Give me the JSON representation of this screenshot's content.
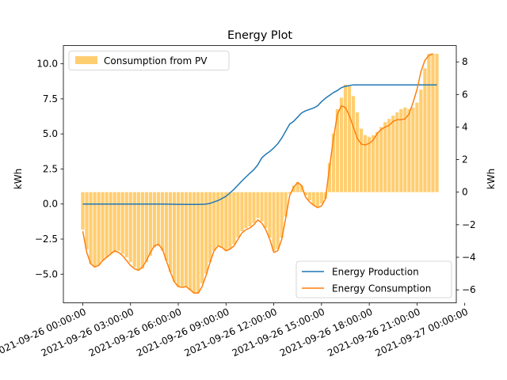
{
  "chart_data": {
    "type": "bar+line",
    "title": "Energy Plot",
    "ylabel_left": "kWh",
    "ylabel_right": "kWh",
    "x_ticks": [
      "2021-09-26 00:00:00",
      "2021-09-26 03:00:00",
      "2021-09-26 06:00:00",
      "2021-09-26 09:00:00",
      "2021-09-26 12:00:00",
      "2021-09-26 15:00:00",
      "2021-09-26 18:00:00",
      "2021-09-26 21:00:00",
      "2021-09-27 00:00:00"
    ],
    "x_tick_hours": [
      0,
      3,
      6,
      9,
      12,
      15,
      18,
      21,
      24
    ],
    "left_axis": {
      "ylim": [
        -7.05,
        11.3
      ],
      "ticks": [
        -5.0,
        -2.5,
        0.0,
        2.5,
        5.0,
        7.5,
        10.0
      ],
      "tick_labels": [
        "−5.0",
        "−2.5",
        "0.0",
        "2.5",
        "5.0",
        "7.5",
        "10.0"
      ]
    },
    "right_axis": {
      "ylim": [
        -6.8,
        9.0
      ],
      "ticks": [
        -6,
        -4,
        -2,
        0,
        2,
        4,
        6,
        8
      ],
      "tick_labels": [
        "−6",
        "−4",
        "−2",
        "0",
        "2",
        "4",
        "6",
        "8"
      ]
    },
    "bars": {
      "name": "Consumption from PV",
      "color": "#ffc658",
      "axis": "right",
      "bar_hours": 0.25,
      "values": [
        [
          0,
          -2.3
        ],
        [
          0.25,
          -3.5
        ],
        [
          0.5,
          -4.4
        ],
        [
          0.75,
          -4.6
        ],
        [
          1,
          -4.5
        ],
        [
          1.25,
          -4.2
        ],
        [
          1.5,
          -4.0
        ],
        [
          1.75,
          -3.8
        ],
        [
          2,
          -3.7
        ],
        [
          2.25,
          -3.6
        ],
        [
          2.5,
          -3.8
        ],
        [
          2.75,
          -4.0
        ],
        [
          3,
          -4.3
        ],
        [
          3.25,
          -4.6
        ],
        [
          3.5,
          -4.8
        ],
        [
          3.75,
          -4.7
        ],
        [
          4,
          -4.3
        ],
        [
          4.25,
          -3.9
        ],
        [
          4.5,
          -3.4
        ],
        [
          4.75,
          -3.3
        ],
        [
          5,
          -3.6
        ],
        [
          5.25,
          -4.2
        ],
        [
          5.5,
          -4.9
        ],
        [
          5.75,
          -5.5
        ],
        [
          6,
          -5.8
        ],
        [
          6.25,
          -5.8
        ],
        [
          6.5,
          -5.8
        ],
        [
          6.75,
          -6.0
        ],
        [
          7,
          -6.2
        ],
        [
          7.25,
          -6.2
        ],
        [
          7.5,
          -5.6
        ],
        [
          7.75,
          -5.0
        ],
        [
          8,
          -4.3
        ],
        [
          8.25,
          -3.6
        ],
        [
          8.5,
          -3.3
        ],
        [
          8.75,
          -3.4
        ],
        [
          9,
          -3.6
        ],
        [
          9.25,
          -3.5
        ],
        [
          9.5,
          -3.2
        ],
        [
          9.75,
          -2.8
        ],
        [
          10,
          -2.4
        ],
        [
          10.25,
          -2.2
        ],
        [
          10.5,
          -2.1
        ],
        [
          10.75,
          -1.9
        ],
        [
          11,
          -1.6
        ],
        [
          11.25,
          -1.8
        ],
        [
          11.5,
          -2.2
        ],
        [
          11.75,
          -2.8
        ],
        [
          12,
          -3.6
        ],
        [
          12.25,
          -3.5
        ],
        [
          12.5,
          -2.8
        ],
        [
          12.75,
          -1.5
        ],
        [
          13,
          -0.1
        ],
        [
          13.25,
          0.4
        ],
        [
          13.5,
          0.6
        ],
        [
          13.75,
          0.4
        ],
        [
          14,
          -0.2
        ],
        [
          14.25,
          -0.5
        ],
        [
          14.5,
          -0.8
        ],
        [
          14.75,
          -0.9
        ],
        [
          15,
          -0.7
        ],
        [
          15.25,
          -0.4
        ],
        [
          15.5,
          1.8
        ],
        [
          15.75,
          3.6
        ],
        [
          16,
          5.1
        ],
        [
          16.25,
          5.8
        ],
        [
          16.5,
          6.6
        ],
        [
          16.75,
          6.5
        ],
        [
          17,
          5.9
        ],
        [
          17.25,
          4.9
        ],
        [
          17.5,
          3.9
        ],
        [
          17.75,
          3.5
        ],
        [
          18,
          3.4
        ],
        [
          18.25,
          3.5
        ],
        [
          18.5,
          3.7
        ],
        [
          18.75,
          4.0
        ],
        [
          19,
          4.3
        ],
        [
          19.25,
          4.5
        ],
        [
          19.5,
          4.7
        ],
        [
          19.75,
          4.9
        ],
        [
          20,
          5.1
        ],
        [
          20.25,
          5.2
        ],
        [
          20.5,
          5.1
        ],
        [
          20.75,
          5.2
        ],
        [
          21,
          5.5
        ],
        [
          21.25,
          6.3
        ],
        [
          21.5,
          7.6
        ],
        [
          21.75,
          8.5
        ],
        [
          22,
          8.5
        ],
        [
          22.25,
          8.5
        ]
      ]
    },
    "series": [
      {
        "name": "Energy Production",
        "color": "#1f77b4",
        "axis": "left",
        "points": [
          [
            0,
            0
          ],
          [
            1,
            0
          ],
          [
            2,
            0
          ],
          [
            3,
            0
          ],
          [
            4,
            0
          ],
          [
            5,
            0
          ],
          [
            6,
            -0.02
          ],
          [
            7,
            -0.03
          ],
          [
            7.5,
            -0.02
          ],
          [
            7.75,
            0.0
          ],
          [
            8,
            0.05
          ],
          [
            8.5,
            0.25
          ],
          [
            9,
            0.55
          ],
          [
            9.5,
            1.05
          ],
          [
            10,
            1.65
          ],
          [
            10.5,
            2.2
          ],
          [
            10.75,
            2.45
          ],
          [
            11,
            2.8
          ],
          [
            11.25,
            3.3
          ],
          [
            11.5,
            3.55
          ],
          [
            11.75,
            3.75
          ],
          [
            12,
            4.0
          ],
          [
            12.25,
            4.3
          ],
          [
            12.5,
            4.7
          ],
          [
            12.75,
            5.2
          ],
          [
            13,
            5.7
          ],
          [
            13.25,
            5.9
          ],
          [
            13.5,
            6.2
          ],
          [
            13.75,
            6.5
          ],
          [
            14,
            6.65
          ],
          [
            14.25,
            6.75
          ],
          [
            14.5,
            6.85
          ],
          [
            14.75,
            7.0
          ],
          [
            15,
            7.3
          ],
          [
            15.25,
            7.55
          ],
          [
            15.5,
            7.75
          ],
          [
            15.75,
            7.95
          ],
          [
            16,
            8.1
          ],
          [
            16.25,
            8.3
          ],
          [
            16.5,
            8.4
          ],
          [
            16.75,
            8.45
          ],
          [
            17,
            8.5
          ],
          [
            18,
            8.5
          ],
          [
            19,
            8.5
          ],
          [
            20,
            8.5
          ],
          [
            21,
            8.5
          ],
          [
            22,
            8.5
          ],
          [
            22.25,
            8.5
          ]
        ]
      },
      {
        "name": "Energy Consumption",
        "color": "#ff7f0e",
        "axis": "right",
        "points": [
          [
            0,
            -2.4
          ],
          [
            0.25,
            -3.7
          ],
          [
            0.5,
            -4.4
          ],
          [
            0.75,
            -4.6
          ],
          [
            1,
            -4.5
          ],
          [
            1.25,
            -4.2
          ],
          [
            1.5,
            -4.0
          ],
          [
            1.75,
            -3.8
          ],
          [
            2,
            -3.6
          ],
          [
            2.25,
            -3.7
          ],
          [
            2.5,
            -3.9
          ],
          [
            2.75,
            -4.2
          ],
          [
            3,
            -4.5
          ],
          [
            3.25,
            -4.7
          ],
          [
            3.5,
            -4.8
          ],
          [
            3.75,
            -4.6
          ],
          [
            4,
            -4.2
          ],
          [
            4.25,
            -3.7
          ],
          [
            4.5,
            -3.3
          ],
          [
            4.75,
            -3.2
          ],
          [
            5,
            -3.5
          ],
          [
            5.25,
            -4.2
          ],
          [
            5.5,
            -4.9
          ],
          [
            5.75,
            -5.5
          ],
          [
            6,
            -5.8
          ],
          [
            6.25,
            -5.85
          ],
          [
            6.5,
            -5.8
          ],
          [
            6.75,
            -6.0
          ],
          [
            7,
            -6.2
          ],
          [
            7.25,
            -6.2
          ],
          [
            7.5,
            -5.8
          ],
          [
            7.75,
            -5.1
          ],
          [
            8,
            -4.3
          ],
          [
            8.25,
            -3.6
          ],
          [
            8.5,
            -3.3
          ],
          [
            8.75,
            -3.4
          ],
          [
            9,
            -3.6
          ],
          [
            9.25,
            -3.5
          ],
          [
            9.5,
            -3.3
          ],
          [
            9.75,
            -2.9
          ],
          [
            10,
            -2.5
          ],
          [
            10.25,
            -2.3
          ],
          [
            10.5,
            -2.2
          ],
          [
            10.75,
            -2.0
          ],
          [
            11,
            -1.7
          ],
          [
            11.25,
            -1.9
          ],
          [
            11.5,
            -2.3
          ],
          [
            11.75,
            -2.9
          ],
          [
            12,
            -3.7
          ],
          [
            12.25,
            -3.6
          ],
          [
            12.5,
            -2.9
          ],
          [
            12.75,
            -1.6
          ],
          [
            13,
            -0.2
          ],
          [
            13.25,
            0.3
          ],
          [
            13.5,
            0.6
          ],
          [
            13.75,
            0.4
          ],
          [
            14,
            -0.3
          ],
          [
            14.25,
            -0.6
          ],
          [
            14.5,
            -0.8
          ],
          [
            14.75,
            -0.95
          ],
          [
            15,
            -0.85
          ],
          [
            15.25,
            -0.4
          ],
          [
            15.5,
            1.5
          ],
          [
            15.75,
            3.3
          ],
          [
            16,
            4.8
          ],
          [
            16.25,
            5.3
          ],
          [
            16.5,
            5.2
          ],
          [
            16.75,
            4.7
          ],
          [
            17,
            4.0
          ],
          [
            17.25,
            3.3
          ],
          [
            17.5,
            2.95
          ],
          [
            17.75,
            2.9
          ],
          [
            18,
            3.0
          ],
          [
            18.25,
            3.2
          ],
          [
            18.5,
            3.6
          ],
          [
            18.75,
            3.85
          ],
          [
            19,
            4.0
          ],
          [
            19.25,
            4.1
          ],
          [
            19.5,
            4.35
          ],
          [
            19.75,
            4.45
          ],
          [
            20,
            4.45
          ],
          [
            20.25,
            4.5
          ],
          [
            20.5,
            4.8
          ],
          [
            20.75,
            5.5
          ],
          [
            21,
            6.3
          ],
          [
            21.25,
            7.4
          ],
          [
            21.5,
            8.1
          ],
          [
            21.75,
            8.4
          ],
          [
            22,
            8.5
          ]
        ]
      }
    ],
    "legend_left": {
      "placement": "top-left",
      "entries": [
        "Consumption from PV"
      ]
    },
    "legend_right": {
      "placement": "bottom-right",
      "entries": [
        "Energy Production",
        "Energy Consumption"
      ]
    }
  }
}
